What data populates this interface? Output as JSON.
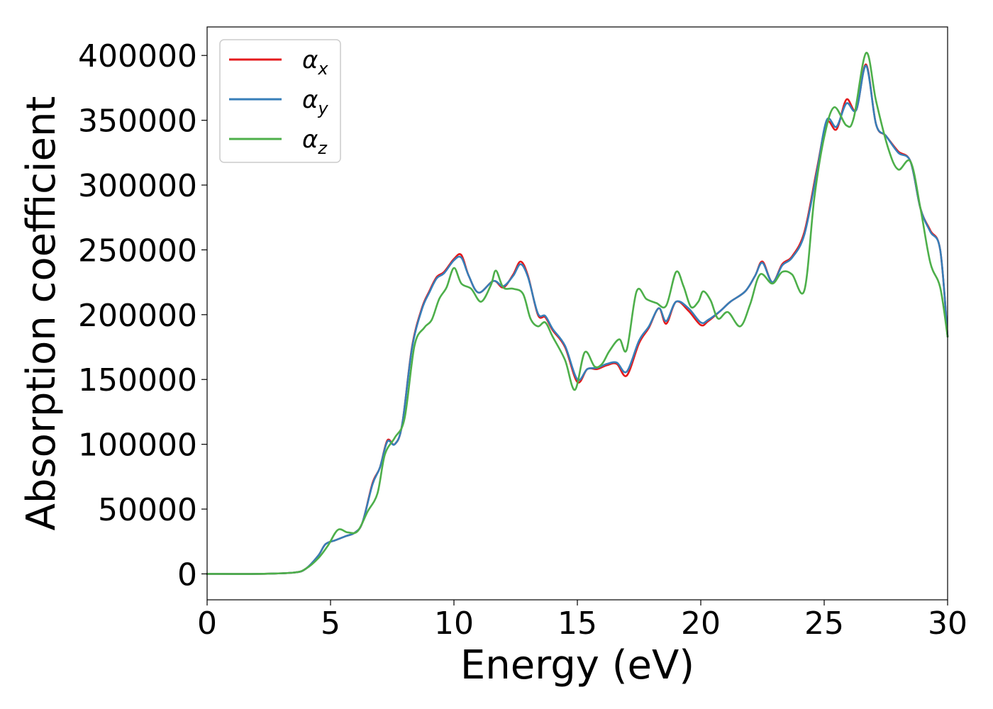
{
  "chart_data": {
    "type": "line",
    "xlabel": "Energy (eV)",
    "ylabel": "Absorption coefficient",
    "xlim": [
      0,
      30
    ],
    "ylim": [
      -20000,
      422000
    ],
    "xticks": [
      0,
      5,
      10,
      15,
      20,
      25,
      30
    ],
    "yticks": [
      0,
      50000,
      100000,
      150000,
      200000,
      250000,
      300000,
      350000,
      400000
    ],
    "grid": false,
    "legend_position": "top-left",
    "series": [
      {
        "name": "α_x",
        "legend_symbol": "α",
        "legend_sub": "x",
        "color": "#e41a1c",
        "x": [
          0,
          2,
          3.5,
          4,
          4.5,
          4.8,
          5.2,
          5.6,
          6.0,
          6.3,
          6.7,
          7.0,
          7.3,
          7.6,
          7.9,
          8.3,
          8.7,
          9.0,
          9.3,
          9.6,
          10.0,
          10.3,
          10.6,
          11.0,
          11.6,
          12.0,
          12.4,
          12.7,
          13.0,
          13.4,
          13.7,
          14.0,
          14.5,
          15.0,
          15.4,
          15.8,
          16.2,
          16.6,
          17.0,
          17.5,
          17.9,
          18.3,
          18.6,
          19.0,
          19.5,
          20.0,
          20.3,
          20.8,
          21.2,
          21.8,
          22.2,
          22.5,
          22.9,
          23.3,
          23.7,
          24.2,
          24.7,
          25.1,
          25.5,
          25.9,
          26.3,
          26.7,
          27.1,
          27.5,
          28.0,
          28.5,
          28.9,
          29.3,
          29.7,
          30.0
        ],
        "y": [
          0,
          0,
          1000,
          4000,
          14000,
          23000,
          26000,
          29000,
          32000,
          40000,
          70000,
          82000,
          103000,
          100000,
          115000,
          175000,
          205000,
          218000,
          229000,
          233000,
          243000,
          246000,
          230000,
          217000,
          226000,
          221000,
          231000,
          241000,
          230000,
          200000,
          198000,
          188000,
          175000,
          148000,
          158000,
          158000,
          161000,
          162000,
          153000,
          178000,
          190000,
          205000,
          193000,
          210000,
          203000,
          192000,
          195000,
          203000,
          210000,
          218000,
          230000,
          241000,
          225000,
          239000,
          245000,
          264000,
          312000,
          348000,
          343000,
          366000,
          358000,
          393000,
          347000,
          338000,
          326000,
          318000,
          282000,
          265000,
          250000,
          183000
        ]
      },
      {
        "name": "α_y",
        "legend_symbol": "α",
        "legend_sub": "y",
        "color": "#377eb8",
        "x": [
          0,
          2,
          3.5,
          4,
          4.5,
          4.8,
          5.2,
          5.6,
          6.0,
          6.3,
          6.7,
          7.0,
          7.3,
          7.6,
          7.9,
          8.3,
          8.7,
          9.0,
          9.3,
          9.6,
          10.0,
          10.3,
          10.6,
          11.0,
          11.6,
          12.0,
          12.4,
          12.7,
          13.0,
          13.4,
          13.7,
          14.0,
          14.5,
          15.0,
          15.4,
          15.8,
          16.2,
          16.6,
          17.0,
          17.5,
          17.9,
          18.3,
          18.6,
          19.0,
          19.5,
          20.0,
          20.3,
          20.8,
          21.2,
          21.8,
          22.2,
          22.5,
          22.9,
          23.3,
          23.7,
          24.2,
          24.7,
          25.1,
          25.5,
          25.9,
          26.3,
          26.7,
          27.1,
          27.5,
          28.0,
          28.5,
          28.9,
          29.3,
          29.7,
          30.0
        ],
        "y": [
          0,
          0,
          1000,
          4000,
          14000,
          23000,
          26000,
          29000,
          32000,
          40000,
          69000,
          82000,
          102000,
          100000,
          115000,
          174000,
          204000,
          217000,
          228000,
          232000,
          242000,
          244000,
          230000,
          217000,
          226000,
          222000,
          230000,
          239000,
          229000,
          201000,
          199000,
          189000,
          176000,
          150000,
          158000,
          159000,
          162000,
          163000,
          156000,
          180000,
          191000,
          205000,
          195000,
          210000,
          205000,
          194000,
          196000,
          203000,
          210000,
          218000,
          230000,
          240000,
          225000,
          238000,
          244000,
          262000,
          310000,
          350000,
          345000,
          363000,
          358000,
          392000,
          347000,
          338000,
          325000,
          318000,
          282000,
          264000,
          250000,
          183000
        ]
      },
      {
        "name": "α_z",
        "legend_symbol": "α",
        "legend_sub": "z",
        "color": "#4daf4a",
        "x": [
          0,
          2,
          3.5,
          4,
          4.5,
          4.9,
          5.3,
          5.7,
          6.1,
          6.5,
          6.9,
          7.2,
          7.6,
          8.0,
          8.4,
          8.8,
          9.1,
          9.4,
          9.7,
          10.0,
          10.3,
          10.7,
          11.1,
          11.5,
          11.7,
          12.0,
          12.4,
          12.8,
          13.1,
          13.4,
          13.7,
          14.0,
          14.5,
          14.9,
          15.3,
          15.7,
          16.0,
          16.3,
          16.7,
          17.0,
          17.4,
          17.8,
          18.2,
          18.6,
          19.0,
          19.3,
          19.6,
          19.9,
          20.1,
          20.4,
          20.7,
          21.1,
          21.6,
          22.0,
          22.4,
          22.9,
          23.3,
          23.7,
          24.2,
          24.6,
          25.0,
          25.4,
          25.9,
          26.2,
          26.7,
          27.1,
          27.6,
          28.0,
          28.5,
          28.9,
          29.3,
          29.7,
          30.0
        ],
        "y": [
          0,
          0,
          1000,
          4000,
          12000,
          22000,
          34000,
          32000,
          33000,
          48000,
          62000,
          92000,
          105000,
          120000,
          176000,
          190000,
          196000,
          212000,
          221000,
          236000,
          224000,
          220000,
          210000,
          223000,
          234000,
          221000,
          220000,
          216000,
          197000,
          191000,
          194000,
          183000,
          165000,
          142000,
          171000,
          160000,
          162000,
          172000,
          181000,
          173000,
          218000,
          212000,
          209000,
          207000,
          233000,
          222000,
          206000,
          210000,
          218000,
          211000,
          197000,
          202000,
          191000,
          208000,
          231000,
          224000,
          233000,
          231000,
          219000,
          290000,
          337000,
          360000,
          346000,
          352000,
          402000,
          365000,
          328000,
          312000,
          318000,
          282000,
          240000,
          221000,
          183000
        ]
      }
    ]
  }
}
